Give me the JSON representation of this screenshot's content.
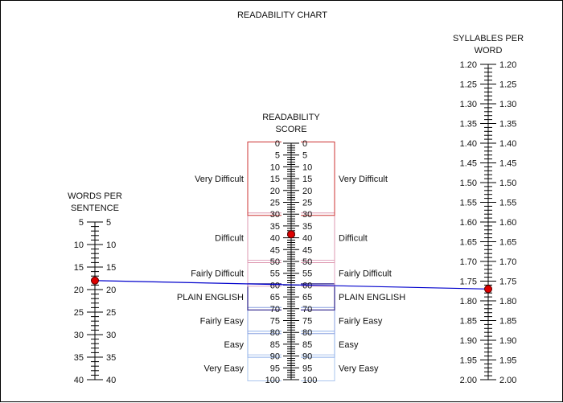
{
  "title": "READABILITY CHART",
  "colors": {
    "axis": "#000000",
    "connector": "#0000cc",
    "marker_fill": "#dd0000",
    "marker_stroke": "#550000"
  },
  "scales": {
    "words": {
      "title": [
        "WORDS PER",
        "SENTENCE"
      ],
      "min": 5,
      "max": 40,
      "major_step": 5,
      "minor_step": 1,
      "labels": [
        "5",
        "10",
        "15",
        "20",
        "25",
        "30",
        "35",
        "40"
      ]
    },
    "score": {
      "title": [
        "READABILITY",
        "SCORE"
      ],
      "min": 0,
      "max": 100,
      "major_step": 5,
      "minor_step": 1,
      "labels": [
        "0",
        "5",
        "10",
        "15",
        "20",
        "25",
        "30",
        "35",
        "40",
        "45",
        "50",
        "55",
        "60",
        "65",
        "70",
        "75",
        "80",
        "85",
        "90",
        "95",
        "100"
      ]
    },
    "syllables": {
      "title": [
        "SYLLABLES PER",
        "WORD"
      ],
      "min": 1.2,
      "max": 2.0,
      "major_step": 0.05,
      "minor_step": 0.01,
      "labels": [
        "1.20",
        "1.25",
        "1.30",
        "1.35",
        "1.40",
        "1.45",
        "1.50",
        "1.55",
        "1.60",
        "1.65",
        "1.70",
        "1.75",
        "1.80",
        "1.85",
        "1.90",
        "1.95",
        "2.00"
      ]
    }
  },
  "bands": [
    {
      "label": "Very Easy",
      "min": 90,
      "max": 100,
      "color": "#aac4ee"
    },
    {
      "label": "Easy",
      "min": 80,
      "max": 90,
      "color": "#8fb0ea"
    },
    {
      "label": "Fairly Easy",
      "min": 70,
      "max": 80,
      "color": "#88a0e0"
    },
    {
      "label": "PLAIN ENGLISH",
      "min": 60,
      "max": 70,
      "color": "#2a1e8a"
    },
    {
      "label": "Fairly Difficult",
      "min": 50,
      "max": 60,
      "color": "#e2a6c0"
    },
    {
      "label": "Difficult",
      "min": 30,
      "max": 50,
      "color": "#dd98b0"
    },
    {
      "label": "Very Difficult",
      "min": 0,
      "max": 30,
      "color": "#cc3333"
    }
  ],
  "selection": {
    "words_per_sentence": 18,
    "syllables_per_word": 1.77,
    "readability_score": 38.5
  }
}
